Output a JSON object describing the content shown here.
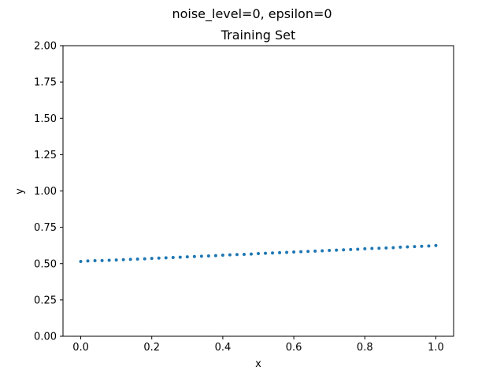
{
  "figure": {
    "suptitle": "noise_level=0, epsilon=0"
  },
  "chart_data": {
    "type": "scatter",
    "title": "Training Set",
    "xlabel": "x",
    "ylabel": "y",
    "xlim": [
      -0.05,
      1.05
    ],
    "ylim": [
      0.0,
      2.0
    ],
    "xticks": [
      "0.0",
      "0.2",
      "0.4",
      "0.6",
      "0.8",
      "1.0"
    ],
    "yticks": [
      "0.00",
      "0.25",
      "0.50",
      "0.75",
      "1.00",
      "1.25",
      "1.50",
      "1.75",
      "2.00"
    ],
    "grid": false,
    "marker_color": "#1f77b4",
    "series": [
      {
        "x": [
          0.0,
          0.02,
          0.04,
          0.06,
          0.08,
          0.1,
          0.12,
          0.14,
          0.16,
          0.18,
          0.2,
          0.22,
          0.24,
          0.26,
          0.28,
          0.3,
          0.32,
          0.34,
          0.36,
          0.38,
          0.4,
          0.42,
          0.44,
          0.46,
          0.48,
          0.5,
          0.52,
          0.54,
          0.56,
          0.58,
          0.6,
          0.62,
          0.64,
          0.66,
          0.68,
          0.7,
          0.72,
          0.74,
          0.76,
          0.78,
          0.8,
          0.82,
          0.84,
          0.86,
          0.88,
          0.9,
          0.92,
          0.94,
          0.96,
          0.98,
          1.0
        ],
        "y": [
          0.515,
          0.518,
          0.52,
          0.521,
          0.523,
          0.525,
          0.527,
          0.529,
          0.531,
          0.533,
          0.536,
          0.538,
          0.54,
          0.542,
          0.544,
          0.547,
          0.549,
          0.551,
          0.553,
          0.555,
          0.558,
          0.56,
          0.562,
          0.564,
          0.566,
          0.569,
          0.571,
          0.573,
          0.575,
          0.577,
          0.58,
          0.582,
          0.584,
          0.586,
          0.588,
          0.591,
          0.593,
          0.595,
          0.597,
          0.599,
          0.602,
          0.604,
          0.606,
          0.608,
          0.61,
          0.613,
          0.615,
          0.617,
          0.619,
          0.621,
          0.625
        ]
      }
    ]
  }
}
